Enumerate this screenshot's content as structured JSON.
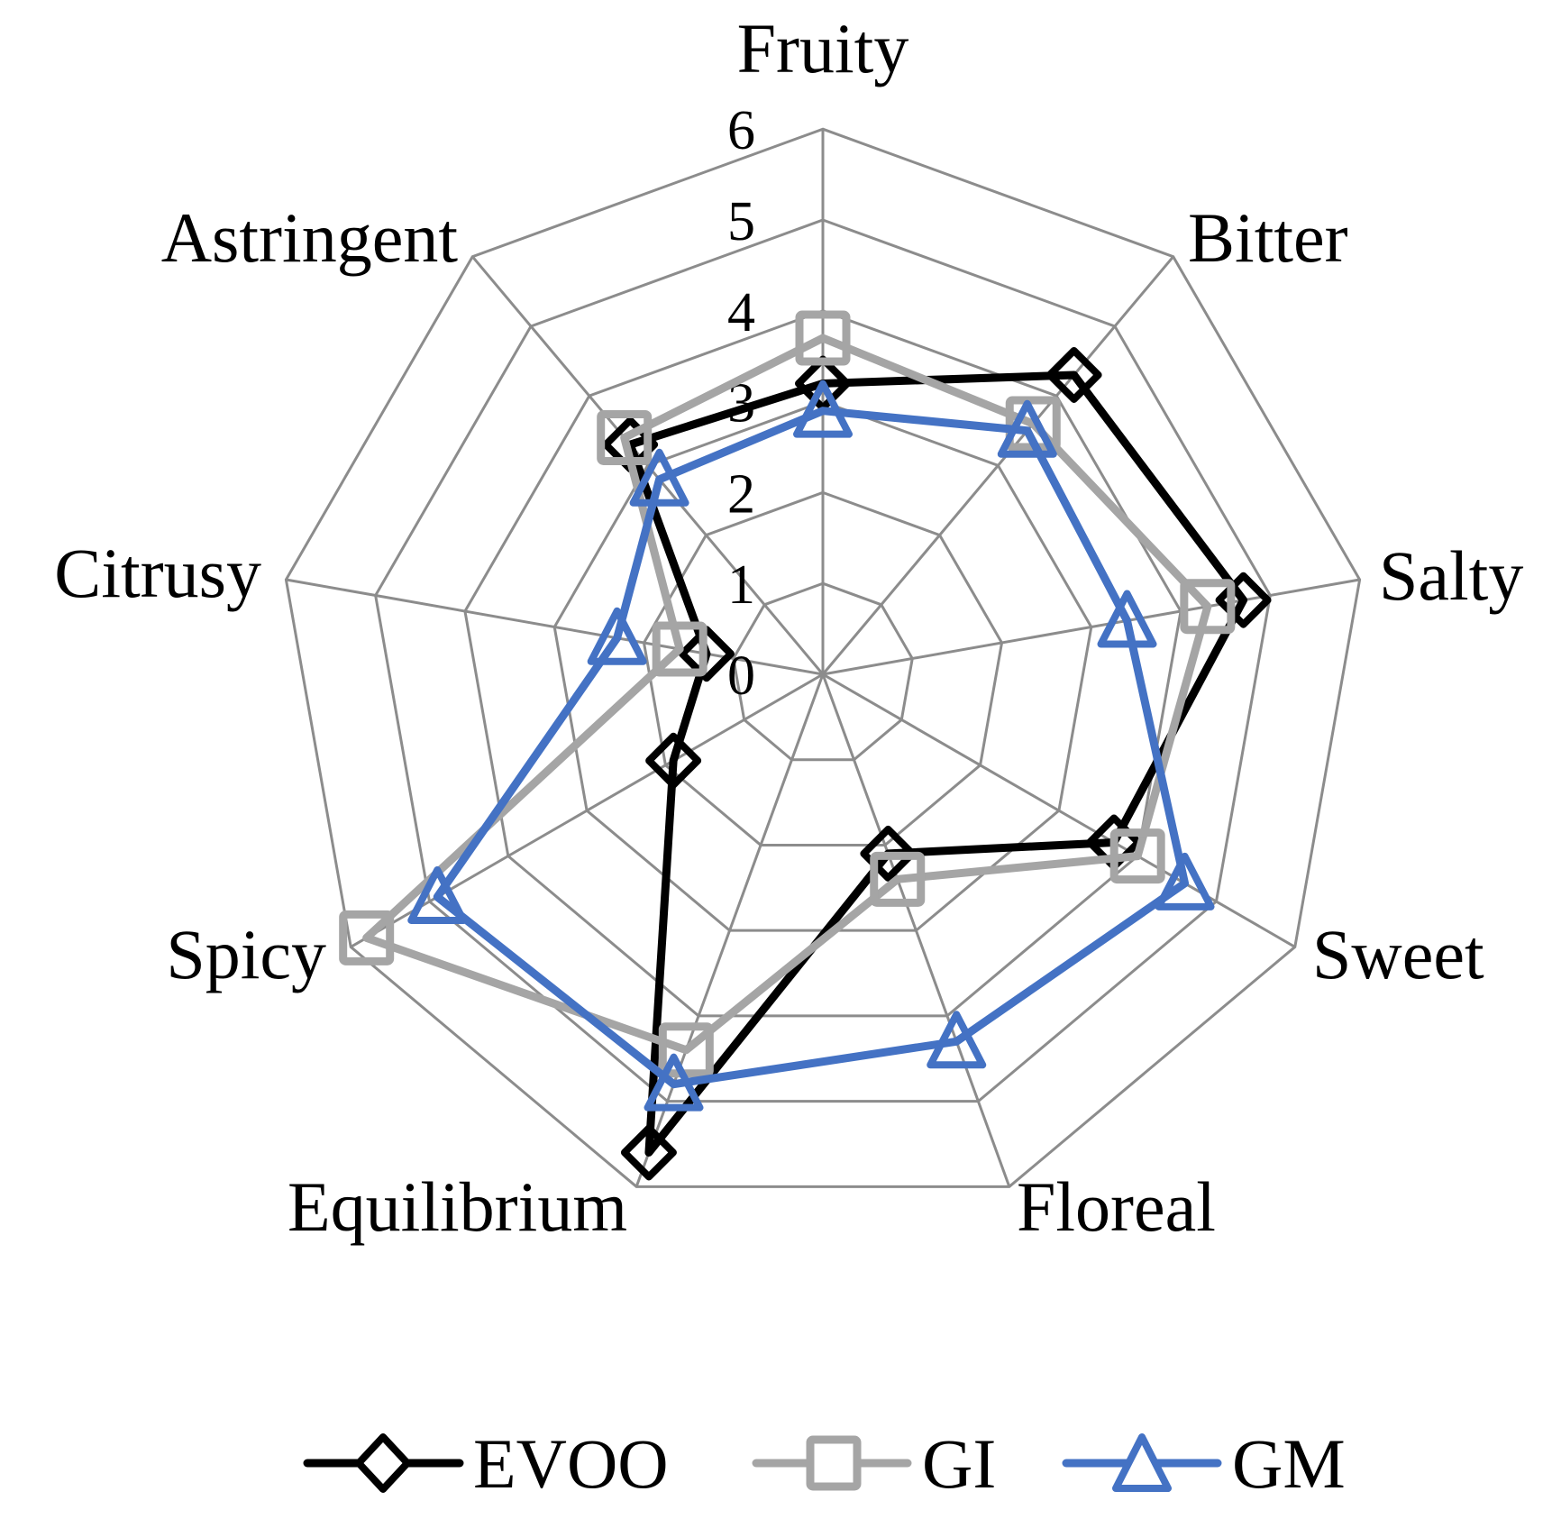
{
  "chart_data": {
    "type": "radar",
    "title": "",
    "axes": [
      "Fruity",
      "Bitter",
      "Salty",
      "Sweet",
      "Floreal",
      "Equilibrium",
      "Spicy",
      "Citrusy",
      "Astringent"
    ],
    "rlim": [
      0,
      6
    ],
    "ticks": [
      "0",
      "1",
      "2",
      "3",
      "4",
      "5",
      "6"
    ],
    "grid": true,
    "legend_position": "bottom",
    "series": [
      {
        "name": "EVOO",
        "color": "#000000",
        "marker": "diamond",
        "values": [
          3.2,
          4.3,
          4.7,
          3.7,
          2.1,
          5.6,
          1.9,
          1.3,
          3.3
        ]
      },
      {
        "name": "GI",
        "color": "#A5A5A5",
        "marker": "square",
        "values": [
          3.7,
          3.6,
          4.3,
          4.0,
          2.4,
          4.4,
          5.8,
          1.6,
          3.4
        ]
      },
      {
        "name": "GM",
        "color": "#4472C4",
        "marker": "triangle",
        "values": [
          2.9,
          3.5,
          3.4,
          4.6,
          4.3,
          4.8,
          4.9,
          2.3,
          2.8
        ]
      }
    ]
  },
  "colors": {
    "grid": "#8C8C8C",
    "text": "#000000"
  },
  "legend": [
    {
      "label": "EVOO"
    },
    {
      "label": "GI"
    },
    {
      "label": "GM"
    }
  ]
}
